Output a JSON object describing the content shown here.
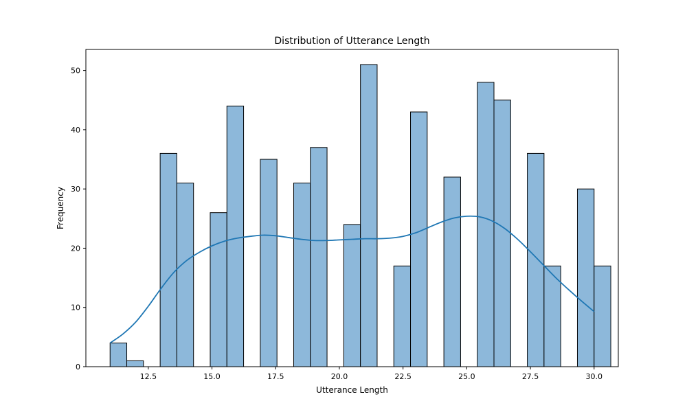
{
  "chart_data": {
    "type": "bar",
    "title": "Distribution of Utterance Length",
    "xlabel": "Utterance Length",
    "ylabel": "Frequency",
    "xlim": [
      10.05,
      30.95
    ],
    "ylim": [
      0,
      53.55
    ],
    "x_ticks": [
      12.5,
      15.0,
      17.5,
      20.0,
      22.5,
      25.0,
      27.5,
      30.0
    ],
    "x_tick_labels": [
      "12.5",
      "15.0",
      "17.5",
      "20.0",
      "22.5",
      "25.0",
      "27.5",
      "30.0"
    ],
    "y_ticks": [
      0,
      10,
      20,
      30,
      40,
      50
    ],
    "y_tick_labels": [
      "0",
      "10",
      "20",
      "30",
      "40",
      "50"
    ],
    "bins": [
      {
        "start": 11.0,
        "end": 11.655,
        "count": 4
      },
      {
        "start": 11.655,
        "end": 12.31,
        "count": 1
      },
      {
        "start": 12.31,
        "end": 12.966,
        "count": 0
      },
      {
        "start": 12.966,
        "end": 13.621,
        "count": 36
      },
      {
        "start": 13.621,
        "end": 14.276,
        "count": 31
      },
      {
        "start": 14.276,
        "end": 14.931,
        "count": 0
      },
      {
        "start": 14.931,
        "end": 15.586,
        "count": 26
      },
      {
        "start": 15.586,
        "end": 16.241,
        "count": 44
      },
      {
        "start": 16.241,
        "end": 16.897,
        "count": 0
      },
      {
        "start": 16.897,
        "end": 17.552,
        "count": 35
      },
      {
        "start": 17.552,
        "end": 18.207,
        "count": 0
      },
      {
        "start": 18.207,
        "end": 18.862,
        "count": 31
      },
      {
        "start": 18.862,
        "end": 19.517,
        "count": 37
      },
      {
        "start": 19.517,
        "end": 20.172,
        "count": 0
      },
      {
        "start": 20.172,
        "end": 20.828,
        "count": 24
      },
      {
        "start": 20.828,
        "end": 21.483,
        "count": 51
      },
      {
        "start": 21.483,
        "end": 22.138,
        "count": 0
      },
      {
        "start": 22.138,
        "end": 22.793,
        "count": 17
      },
      {
        "start": 22.793,
        "end": 23.448,
        "count": 43
      },
      {
        "start": 23.448,
        "end": 24.103,
        "count": 0
      },
      {
        "start": 24.103,
        "end": 24.759,
        "count": 32
      },
      {
        "start": 24.759,
        "end": 25.414,
        "count": 0
      },
      {
        "start": 25.414,
        "end": 26.069,
        "count": 48
      },
      {
        "start": 26.069,
        "end": 26.724,
        "count": 45
      },
      {
        "start": 26.724,
        "end": 27.379,
        "count": 0
      },
      {
        "start": 27.379,
        "end": 28.034,
        "count": 36
      },
      {
        "start": 28.034,
        "end": 28.69,
        "count": 17
      },
      {
        "start": 28.69,
        "end": 29.345,
        "count": 0
      },
      {
        "start": 29.345,
        "end": 30.0,
        "count": 30
      },
      {
        "start": 30.0,
        "end": 30.655,
        "count": 17
      }
    ],
    "kde": {
      "x": [
        11.0,
        11.5,
        12.0,
        12.5,
        13.0,
        13.5,
        14.0,
        14.5,
        15.0,
        15.5,
        16.0,
        16.5,
        17.0,
        17.5,
        18.0,
        18.5,
        19.0,
        19.5,
        20.0,
        20.5,
        21.0,
        21.5,
        22.0,
        22.5,
        23.0,
        23.5,
        24.0,
        24.5,
        25.0,
        25.5,
        26.0,
        26.5,
        27.0,
        27.5,
        28.0,
        28.5,
        29.0,
        29.5,
        30.0
      ],
      "y": [
        4.0,
        5.5,
        7.5,
        10.2,
        13.2,
        15.9,
        17.9,
        19.3,
        20.4,
        21.2,
        21.7,
        22.0,
        22.2,
        22.1,
        21.8,
        21.5,
        21.3,
        21.3,
        21.4,
        21.5,
        21.6,
        21.6,
        21.7,
        22.0,
        22.6,
        23.5,
        24.4,
        25.1,
        25.4,
        25.3,
        24.6,
        23.3,
        21.5,
        19.4,
        17.2,
        15.0,
        13.0,
        11.1,
        9.3
      ]
    },
    "grid": false,
    "legend": "none",
    "colors": {
      "bar_fill": "#8db8da",
      "bar_edge": "#000000",
      "kde_line": "#1f77b4",
      "axes": "#000000"
    }
  }
}
